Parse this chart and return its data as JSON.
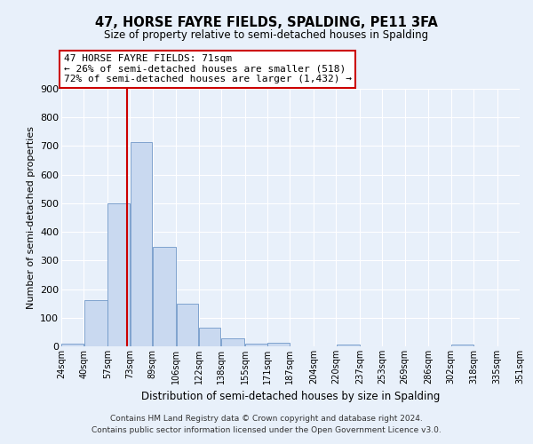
{
  "title": "47, HORSE FAYRE FIELDS, SPALDING, PE11 3FA",
  "subtitle": "Size of property relative to semi-detached houses in Spalding",
  "xlabel": "Distribution of semi-detached houses by size in Spalding",
  "ylabel": "Number of semi-detached properties",
  "bar_color": "#c9d9f0",
  "bar_edge_color": "#7098c8",
  "background_color": "#e8f0fa",
  "grid_color": "#ffffff",
  "property_line_x": 71,
  "property_line_color": "#cc0000",
  "annotation_line1": "47 HORSE FAYRE FIELDS: 71sqm",
  "annotation_line2": "← 26% of semi-detached houses are smaller (518)",
  "annotation_line3": "72% of semi-detached houses are larger (1,432) →",
  "annotation_box_color": "#ffffff",
  "annotation_box_edge_color": "#cc0000",
  "bin_edges": [
    24,
    40,
    57,
    73,
    89,
    106,
    122,
    138,
    155,
    171,
    187,
    204,
    220,
    237,
    253,
    269,
    286,
    302,
    318,
    335,
    351
  ],
  "bin_labels": [
    "24sqm",
    "40sqm",
    "57sqm",
    "73sqm",
    "89sqm",
    "106sqm",
    "122sqm",
    "138sqm",
    "155sqm",
    "171sqm",
    "187sqm",
    "204sqm",
    "220sqm",
    "237sqm",
    "253sqm",
    "269sqm",
    "286sqm",
    "302sqm",
    "318sqm",
    "335sqm",
    "351sqm"
  ],
  "bar_heights": [
    8,
    160,
    500,
    715,
    348,
    148,
    65,
    28,
    8,
    12,
    0,
    0,
    5,
    0,
    0,
    0,
    0,
    5,
    0,
    0
  ],
  "ylim": [
    0,
    900
  ],
  "yticks": [
    0,
    100,
    200,
    300,
    400,
    500,
    600,
    700,
    800,
    900
  ],
  "footer_line1": "Contains HM Land Registry data © Crown copyright and database right 2024.",
  "footer_line2": "Contains public sector information licensed under the Open Government Licence v3.0."
}
